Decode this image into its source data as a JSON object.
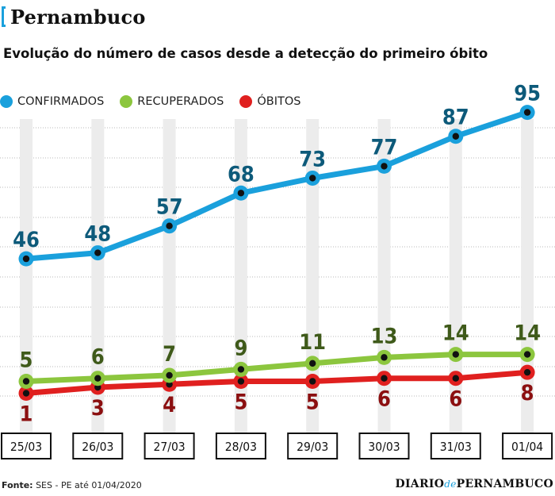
{
  "header": {
    "title": "Pernambuco"
  },
  "subtitle": "Evolução do número de casos desde a detecção do primeiro óbito",
  "legend": [
    {
      "label": "CONFIRMADOS",
      "color": "#1aa0dc"
    },
    {
      "label": "RECUPERADOS",
      "color": "#8cc63e"
    },
    {
      "label": "ÓBITOS",
      "color": "#e0201f"
    }
  ],
  "footer": {
    "source_label": "Fonte:",
    "source_text": "SES - PE até 01/04/2020",
    "brand_part1": "DIARIO",
    "brand_part2": "de",
    "brand_part3": "PERNAMBUCO"
  },
  "chart_data": {
    "type": "line",
    "categories": [
      "25/03",
      "26/03",
      "27/03",
      "28/03",
      "29/03",
      "30/03",
      "31/03",
      "01/04"
    ],
    "series": [
      {
        "name": "CONFIRMADOS",
        "values": [
          46,
          48,
          57,
          68,
          73,
          77,
          87,
          95
        ],
        "color": "#1aa0dc",
        "label_color": "#0d5a7a"
      },
      {
        "name": "RECUPERADOS",
        "values": [
          5,
          6,
          7,
          9,
          11,
          13,
          14,
          14
        ],
        "color": "#8cc63e",
        "label_color": "#3f5a1a"
      },
      {
        "name": "ÓBITOS",
        "values": [
          1,
          3,
          4,
          5,
          5,
          6,
          6,
          8
        ],
        "color": "#e0201f",
        "label_color": "#8b0f10"
      }
    ],
    "grid": true,
    "legend_position": "top-left"
  }
}
